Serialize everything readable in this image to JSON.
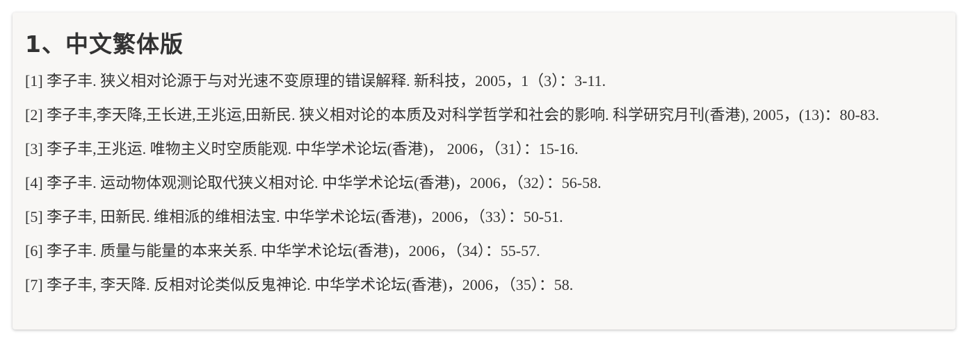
{
  "heading": "1、中文繁体版",
  "references": [
    "[1] 李子丰. 狭义相对论源于与对光速不变原理的错误解释. 新科技，2005，1（3）：3-11.",
    "[2] 李子丰,李天降,王长进,王兆运,田新民. 狭义相对论的本质及对科学哲学和社会的影响. 科学研究月刊(香港), 2005，(13)：80-83.",
    "[3] 李子丰,王兆运. 唯物主义时空质能观. 中华学术论坛(香港)， 2006，（31）：15-16.",
    "[4] 李子丰. 运动物体观测论取代狭义相对论. 中华学术论坛(香港)，2006，（32）：56-58.",
    "[5] 李子丰, 田新民. 维相派的维相法宝. 中华学术论坛(香港)，2006，（33）：50-51.",
    "[6] 李子丰. 质量与能量的本来关系. 中华学术论坛(香港)，2006，（34）：55-57.",
    "[7] 李子丰, 李天降. 反相对论类似反鬼神论. 中华学术论坛(香港)，2006，（35）：58."
  ]
}
